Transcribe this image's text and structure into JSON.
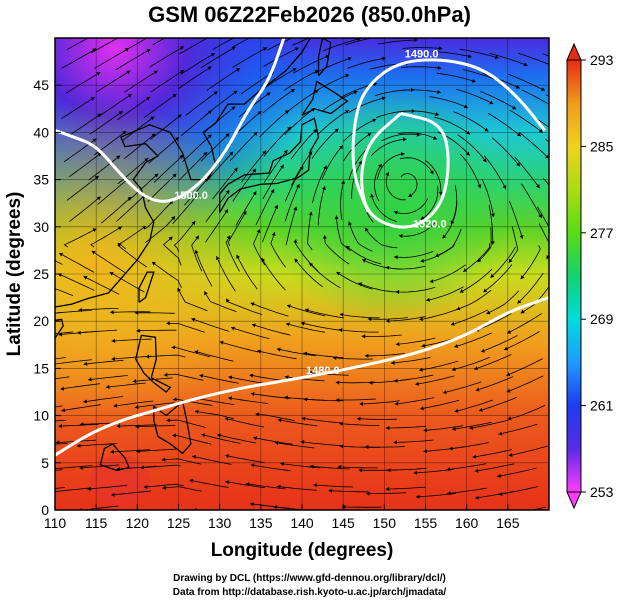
{
  "title": "GSM 06Z22Feb2026 (850.0hPa)",
  "credit_line1": "Drawing by DCL (https://www.gfd-dennou.org/library/dcl/)",
  "credit_line2": "Data from http://database.rish.kyoto-u.ac.jp/arch/jmadata/",
  "chart_data": {
    "type": "heatmap",
    "title": "GSM 06Z22Feb2026 (850.0hPa)",
    "xlabel": "Longitude (degrees)",
    "ylabel": "Latitude  (degrees)",
    "xlim": [
      110,
      170
    ],
    "ylim": [
      0,
      50
    ],
    "x_ticks": [
      "110",
      "115",
      "120",
      "125",
      "130",
      "135",
      "140",
      "145",
      "150",
      "155",
      "160",
      "165"
    ],
    "y_ticks": [
      "0",
      "5",
      "10",
      "15",
      "20",
      "25",
      "30",
      "35",
      "40",
      "45"
    ],
    "grid": true,
    "colorbar": {
      "ticks": [
        "253",
        "261",
        "269",
        "277",
        "285",
        "293"
      ],
      "range": [
        253,
        293
      ],
      "colors": [
        "#ff3cff",
        "#5a2be6",
        "#1e3cf0",
        "#1e9bff",
        "#00dcdc",
        "#14d26e",
        "#5adc14",
        "#aadc14",
        "#f0d21e",
        "#f09b1e",
        "#f05a1e",
        "#e62d14"
      ]
    },
    "contours": [
      {
        "label": "1500.0",
        "points": [
          [
            137.8,
            50
          ],
          [
            136.0,
            45.5
          ],
          [
            133.5,
            42.5
          ],
          [
            130.8,
            38
          ],
          [
            127.5,
            34.4
          ],
          [
            124.0,
            32.5
          ],
          [
            121.0,
            33.0
          ],
          [
            118.0,
            35.5
          ],
          [
            115.0,
            38.6
          ],
          [
            112.0,
            39.6
          ],
          [
            110,
            40.2
          ]
        ]
      },
      {
        "label": "1490.0",
        "points": [
          [
            148.0,
            31.6
          ],
          [
            146.0,
            36.0
          ],
          [
            146.5,
            42.5
          ],
          [
            148.5,
            45.5
          ],
          [
            152.0,
            47.5
          ],
          [
            157.0,
            47.8
          ],
          [
            162.0,
            46.8
          ],
          [
            166.0,
            44.0
          ],
          [
            169.5,
            40.2
          ]
        ]
      },
      {
        "label": "1520.0",
        "points": [
          [
            152.0,
            42.0
          ],
          [
            157.0,
            41.0
          ],
          [
            158.0,
            37.0
          ],
          [
            157.0,
            32.0
          ],
          [
            153.0,
            29.5
          ],
          [
            148.0,
            31.0
          ],
          [
            147.0,
            35.0
          ],
          [
            148.0,
            39.0
          ],
          [
            152.0,
            42.0
          ]
        ]
      },
      {
        "label": "1480.0",
        "points": [
          [
            110,
            5.8
          ],
          [
            114.0,
            8.0
          ],
          [
            118.0,
            9.5
          ],
          [
            122.0,
            10.5
          ],
          [
            127.0,
            11.8
          ],
          [
            133.0,
            13.0
          ],
          [
            140.0,
            14.0
          ],
          [
            147.0,
            15.2
          ],
          [
            154.0,
            16.6
          ],
          [
            160.0,
            18.5
          ],
          [
            165.0,
            21.0
          ],
          [
            170,
            22.5
          ]
        ]
      }
    ]
  }
}
